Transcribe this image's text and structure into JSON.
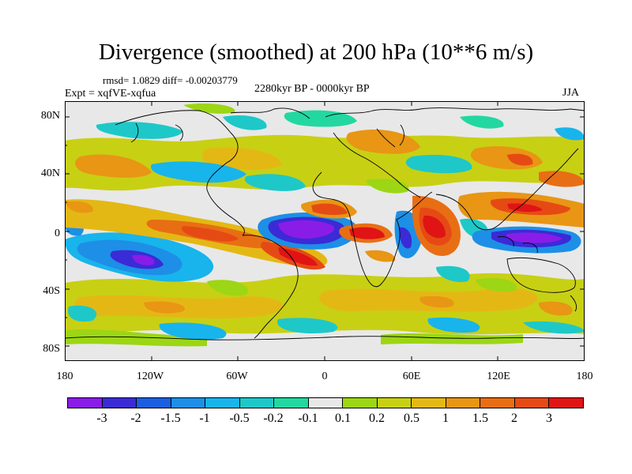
{
  "title": "Divergence (smoothed) at 200 hPa (10**6 m/s)",
  "stats": "rmsd= 1.0829 diff= -0.00203779",
  "experiment": "Expt = xqfVE-xqfua",
  "period": "2280kyr BP - 0000kyr BP",
  "season": "JJA",
  "lat_labels": [
    "80N",
    "40N",
    "0",
    "40S",
    "80S"
  ],
  "lon_labels": [
    "180",
    "120W",
    "60W",
    "0",
    "60E",
    "120E",
    "180"
  ],
  "colorbar": {
    "colors": [
      "#8a1ce8",
      "#3a2bd6",
      "#1c5ee0",
      "#1d8fe6",
      "#18b4ec",
      "#1ec8c8",
      "#22d8a0",
      "#e8e8e8",
      "#9cd614",
      "#c8d014",
      "#e4b814",
      "#e89614",
      "#e86e14",
      "#e64a14",
      "#e01414"
    ],
    "labels": [
      "-3",
      "-2",
      "-1.5",
      "-1",
      "-0.5",
      "-0.2",
      "-0.1",
      "0.1",
      "0.2",
      "0.5",
      "1",
      "1.5",
      "2",
      "3"
    ]
  }
}
